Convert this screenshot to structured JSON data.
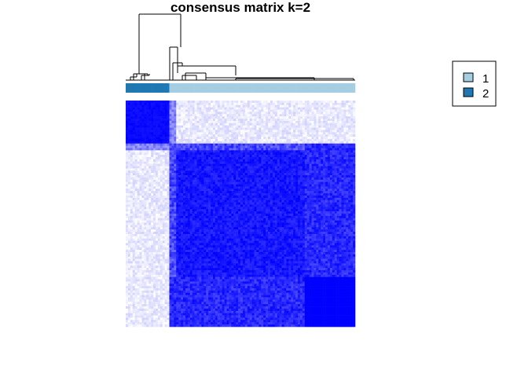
{
  "chart_data": {
    "type": "heatmap",
    "title": "consensus matrix k=2",
    "xlabel": "",
    "ylabel": "",
    "value_range": [
      0,
      1
    ],
    "color_scale": [
      "#ffffff",
      "#0000ff"
    ],
    "n_samples": 100,
    "sample_order_clusters_top": [
      "2",
      "1"
    ],
    "class_colors": {
      "1": "#a6cee3",
      "2": "#1f78b4"
    },
    "legend": {
      "placement": "top-right",
      "entries": [
        {
          "label": "1",
          "color": "#a6cee3"
        },
        {
          "label": "2",
          "color": "#1f78b4"
        }
      ]
    },
    "blocks": [
      {
        "rows": "cluster 2 (samples 1-19)",
        "cols": "cluster 2 (samples 1-19)",
        "value": 0.97
      },
      {
        "rows": "cluster 1 (samples 20-100)",
        "cols": "cluster 1 (samples 20-100)",
        "value": 0.95
      },
      {
        "rows": "cluster 1",
        "cols": "cluster 2",
        "value": 0.1
      },
      {
        "rows": "cluster 1 sub-block (samples 79-100)",
        "cols": "cluster 1 sub-block (samples 79-100)",
        "value": 1.0
      }
    ]
  }
}
